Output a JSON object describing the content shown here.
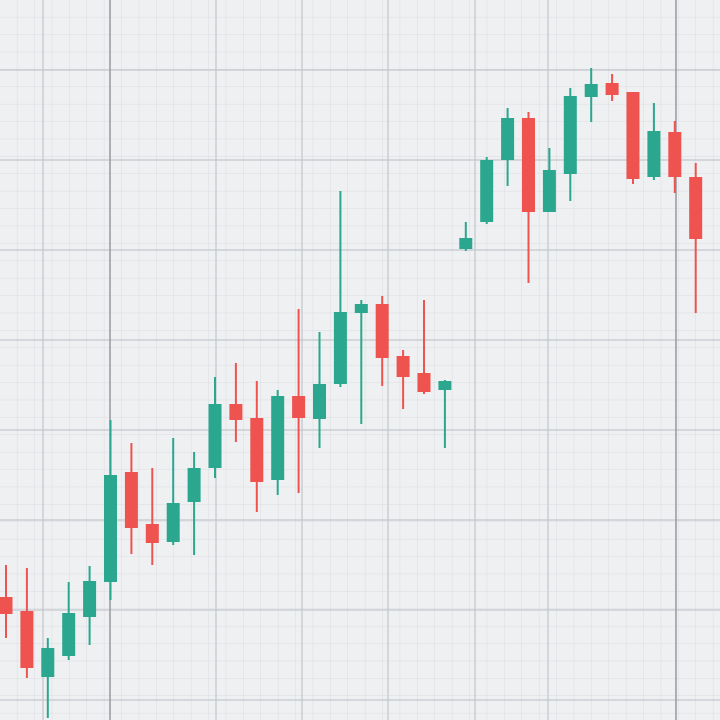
{
  "chart_data": {
    "type": "candlestick",
    "categories": [
      null,
      null,
      null,
      null,
      null,
      null,
      null,
      null,
      null,
      null,
      null,
      null,
      null,
      null,
      null,
      null,
      null,
      null,
      null,
      null,
      null,
      null,
      null,
      null,
      null,
      null,
      null,
      null,
      null,
      null,
      null,
      null,
      null,
      null
    ],
    "open": [
      123,
      109,
      43,
      64,
      103,
      138,
      248,
      196,
      178,
      218,
      252,
      316,
      302,
      240,
      324,
      301,
      336,
      407,
      416,
      364,
      347,
      330,
      471,
      498,
      560,
      602,
      508,
      546,
      623,
      637,
      628,
      543,
      588,
      543
    ],
    "high": [
      155,
      152,
      82,
      138,
      154,
      300,
      277,
      252,
      282,
      268,
      343,
      357,
      339,
      330,
      411,
      388,
      529,
      420,
      424,
      370,
      420,
      340,
      498,
      563,
      612,
      608,
      572,
      632,
      652,
      646,
      628,
      617,
      599,
      557
    ],
    "low": [
      82,
      42,
      2,
      60,
      75,
      120,
      166,
      155,
      175,
      165,
      242,
      278,
      208,
      225,
      227,
      272,
      333,
      296,
      334,
      311,
      326,
      272,
      469,
      496,
      534,
      437,
      508,
      519,
      598,
      619,
      536,
      540,
      527,
      407
    ],
    "close": [
      106,
      52,
      72,
      107,
      139,
      245,
      192,
      177,
      217,
      252,
      316,
      300,
      238,
      324,
      302,
      336,
      408,
      416,
      362,
      343,
      328,
      339,
      482,
      560,
      602,
      508,
      550,
      624,
      636,
      625,
      541,
      589,
      543,
      481
    ],
    "up_color": "#2ba68f",
    "down_color": "#ef5350",
    "ylim": [
      0,
      720
    ]
  }
}
